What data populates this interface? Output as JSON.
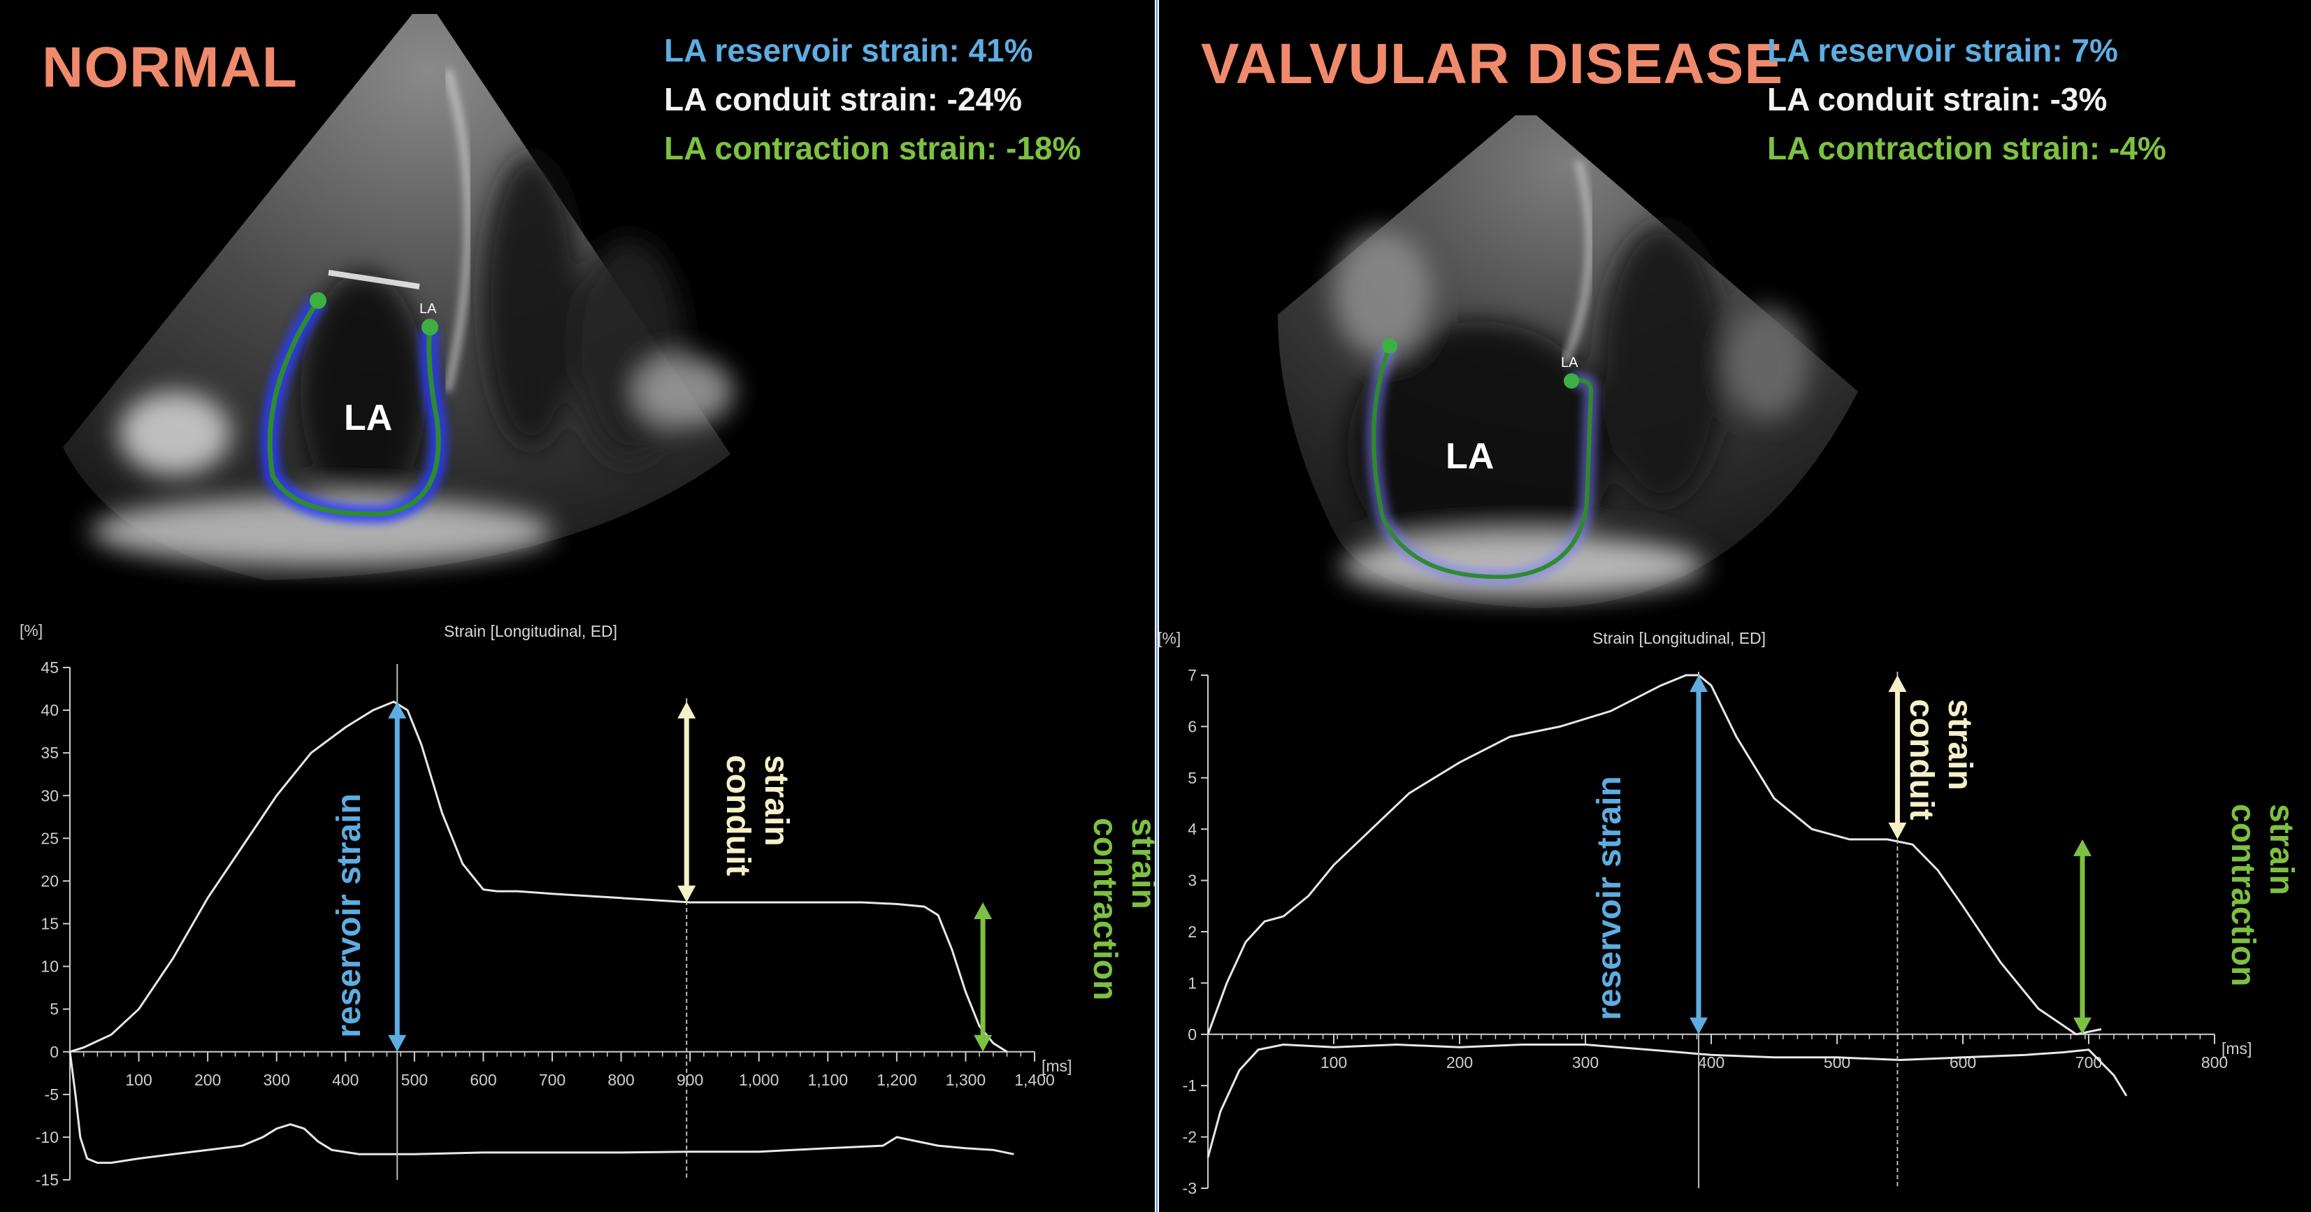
{
  "panels": {
    "normal": {
      "heading": "NORMAL",
      "reservoir_text": "LA reservoir strain: 41%",
      "conduit_text": "LA conduit strain: -24%",
      "contraction_text": "LA contraction strain: -18%",
      "chamber_label": "LA",
      "marker_label": "LA"
    },
    "valvular": {
      "heading": "VALVULAR DISEASE",
      "reservoir_text": "LA reservoir strain: 7%",
      "conduit_text": "LA conduit strain: -3%",
      "contraction_text": "LA contraction strain: -4%",
      "chamber_label": "LA",
      "marker_label": "LA"
    }
  },
  "colors": {
    "heading": "#f08a6c",
    "reservoir": "#5dade2",
    "conduit": "#f5f0c8",
    "contraction": "#7cc142",
    "trace": "#e8e8e8",
    "axis": "#cfcfcf"
  },
  "chart_data": [
    {
      "type": "line",
      "title": "Strain [Longitudinal, ED]",
      "ylabel": "[%]",
      "xlabel": "[ms]",
      "xlim": [
        0,
        1400
      ],
      "ylim": [
        -15,
        45
      ],
      "xticks": [
        100,
        200,
        300,
        400,
        500,
        600,
        700,
        800,
        900,
        1000,
        1100,
        1200,
        1300,
        1400
      ],
      "xtick_labels": [
        "100",
        "200",
        "300",
        "400",
        "500",
        "600",
        "700",
        "800",
        "900",
        "1,000",
        "1,100",
        "1,200",
        "1,300",
        "1,400"
      ],
      "yticks": [
        45,
        40,
        35,
        30,
        25,
        20,
        15,
        10,
        5,
        0,
        -5,
        -10,
        -15
      ],
      "series": [
        {
          "x": [
            0,
            20,
            60,
            100,
            150,
            200,
            250,
            300,
            350,
            400,
            440,
            470,
            490,
            510,
            540,
            570,
            600,
            620,
            650,
            700,
            800,
            900,
            1000,
            1050,
            1100,
            1150,
            1200,
            1240,
            1260,
            1280,
            1300,
            1320,
            1340,
            1360
          ],
          "y": [
            0,
            0.5,
            2,
            5,
            11,
            18,
            24,
            30,
            35,
            38,
            40,
            41,
            40,
            36,
            28,
            22,
            19,
            18.8,
            18.8,
            18.5,
            18,
            17.5,
            17.5,
            17.5,
            17.5,
            17.5,
            17.3,
            17,
            16,
            12,
            7,
            3,
            1,
            0
          ]
        },
        {
          "x": [
            0,
            8,
            15,
            25,
            40,
            60,
            100,
            150,
            200,
            250,
            280,
            300,
            320,
            340,
            360,
            380,
            420,
            500,
            600,
            700,
            800,
            900,
            1000,
            1100,
            1180,
            1200,
            1230,
            1260,
            1300,
            1340,
            1370
          ],
          "y": [
            0,
            -5,
            -10,
            -12.5,
            -13,
            -13,
            -12.5,
            -12,
            -11.5,
            -11,
            -10,
            -9,
            -8.5,
            -9,
            -10.5,
            -11.5,
            -12,
            -12,
            -11.8,
            -11.8,
            -11.8,
            -11.7,
            -11.7,
            -11.3,
            -11,
            -10,
            -10.5,
            -11,
            -11.3,
            -11.5,
            -12
          ]
        }
      ],
      "annotations": {
        "reservoir": {
          "x": 475,
          "y_top": 41,
          "y_bottom": 0,
          "text": "reservoir strain"
        },
        "conduit": {
          "x": 895,
          "y_top": 41,
          "y_bottom": 17.5,
          "text_lines": [
            "conduit",
            "strain"
          ]
        },
        "contraction": {
          "x": 1325,
          "y_top": 17.5,
          "y_bottom": 0,
          "text_lines": [
            "contraction",
            "strain"
          ]
        }
      }
    },
    {
      "type": "line",
      "title": "Strain [Longitudinal, ED]",
      "ylabel": "[%]",
      "xlabel": "[ms]",
      "xlim": [
        0,
        800
      ],
      "ylim": [
        -3,
        7
      ],
      "xticks": [
        100,
        200,
        300,
        400,
        500,
        600,
        700,
        800
      ],
      "xtick_labels": [
        "100",
        "200",
        "300",
        "400",
        "500",
        "600",
        "700",
        "800"
      ],
      "yticks": [
        7,
        6,
        5,
        4,
        3,
        2,
        1,
        0,
        -1,
        -2,
        -3
      ],
      "series": [
        {
          "x": [
            0,
            15,
            30,
            45,
            60,
            80,
            100,
            130,
            160,
            200,
            240,
            280,
            320,
            360,
            380,
            390,
            400,
            420,
            450,
            480,
            510,
            540,
            560,
            580,
            600,
            630,
            660,
            690,
            710
          ],
          "y": [
            0,
            1,
            1.8,
            2.2,
            2.3,
            2.7,
            3.3,
            4.0,
            4.7,
            5.3,
            5.8,
            6.0,
            6.3,
            6.8,
            7.0,
            7.0,
            6.8,
            5.8,
            4.6,
            4.0,
            3.8,
            3.8,
            3.7,
            3.2,
            2.5,
            1.4,
            0.5,
            0,
            0.1
          ]
        },
        {
          "x": [
            0,
            10,
            25,
            40,
            60,
            100,
            150,
            200,
            250,
            300,
            350,
            400,
            450,
            500,
            550,
            600,
            650,
            680,
            700,
            720,
            730
          ],
          "y": [
            -2.4,
            -1.5,
            -0.7,
            -0.3,
            -0.2,
            -0.25,
            -0.2,
            -0.25,
            -0.2,
            -0.2,
            -0.3,
            -0.4,
            -0.45,
            -0.45,
            -0.5,
            -0.45,
            -0.4,
            -0.35,
            -0.3,
            -0.8,
            -1.2
          ]
        }
      ],
      "annotations": {
        "reservoir": {
          "x": 390,
          "y_top": 7,
          "y_bottom": 0,
          "text": "reservoir strain"
        },
        "conduit": {
          "x": 548,
          "y_top": 7,
          "y_bottom": 3.8,
          "text_lines": [
            "conduit",
            "strain"
          ]
        },
        "contraction": {
          "x": 695,
          "y_top": 3.8,
          "y_bottom": 0,
          "text_lines": [
            "contraction",
            "strain"
          ]
        }
      }
    }
  ]
}
